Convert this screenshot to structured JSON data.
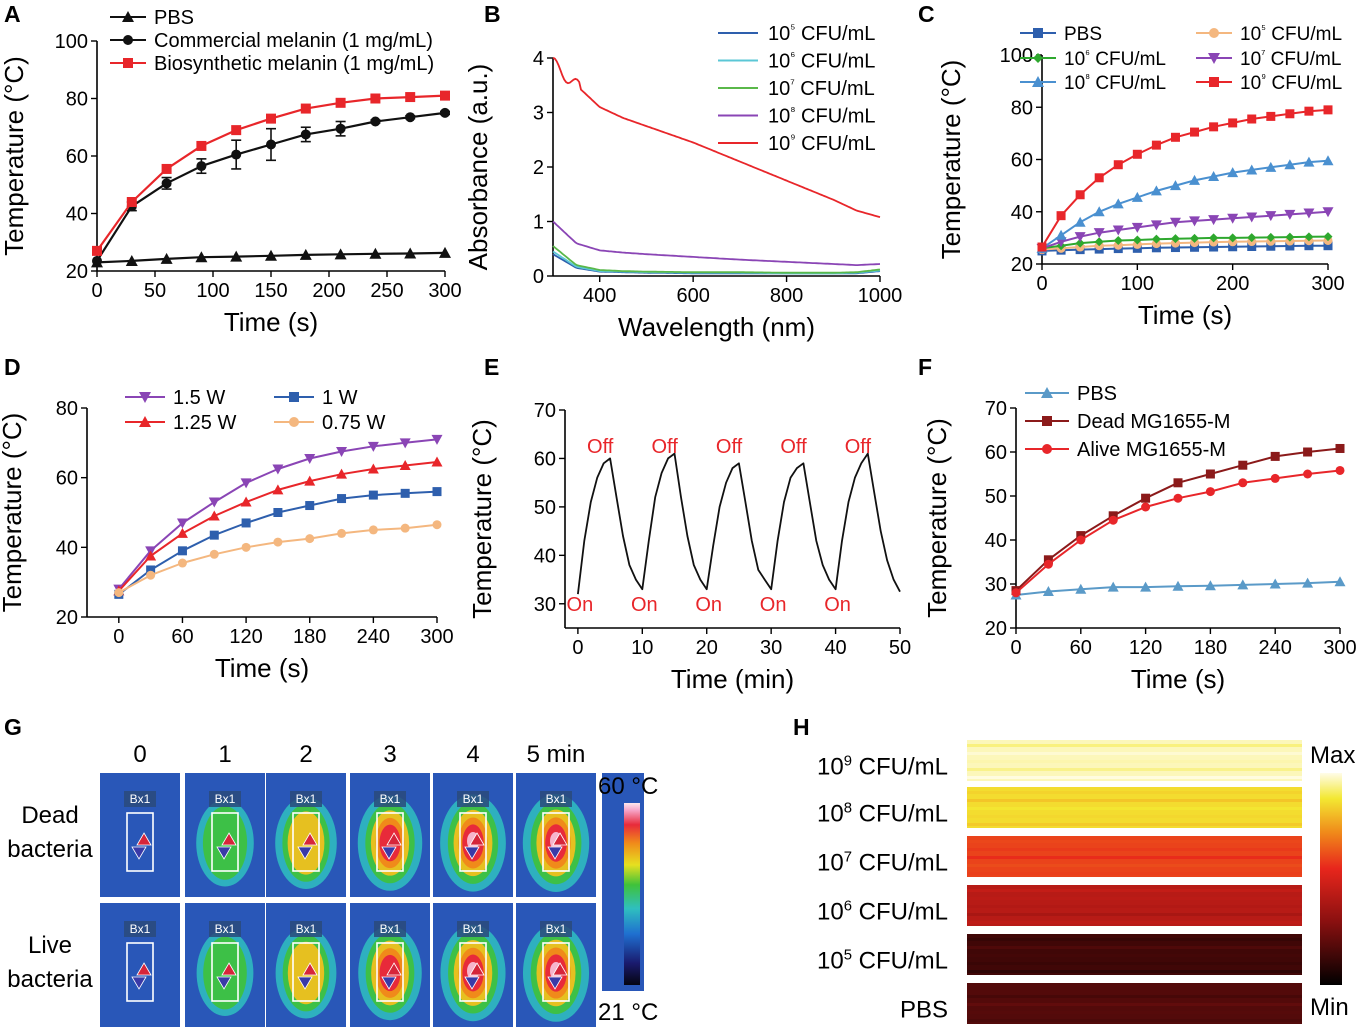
{
  "panels": {
    "A": {
      "letter": "A"
    },
    "B": {
      "letter": "B"
    },
    "C": {
      "letter": "C"
    },
    "D": {
      "letter": "D"
    },
    "E": {
      "letter": "E"
    },
    "F": {
      "letter": "F"
    },
    "G": {
      "letter": "G"
    },
    "H": {
      "letter": "H"
    }
  },
  "colors": {
    "black": "#111111",
    "red": "#e8262a",
    "darkblue": "#2e5fad",
    "cyan": "#5bc7d6",
    "green": "#5ab84a",
    "purple": "#8a45b5",
    "lightblue": "#4a90d0",
    "orange": "#f4b77f",
    "mgreen": "#2ea82e",
    "dred": "#8b1a1a",
    "sblue": "#5a9ac8",
    "offred": "#e8262a"
  },
  "chart_data": [
    {
      "id": "A",
      "type": "line",
      "xlabel": "Time (s)",
      "ylabel": "Temperature (°C)",
      "xlim": [
        0,
        300
      ],
      "ylim": [
        20,
        100
      ],
      "xticks": [
        0,
        50,
        100,
        150,
        200,
        250,
        300
      ],
      "yticks": [
        20,
        40,
        60,
        80,
        100
      ],
      "legend_position": "top-left",
      "x": [
        0,
        30,
        60,
        90,
        120,
        150,
        180,
        210,
        240,
        270,
        300
      ],
      "series": [
        {
          "name": "PBS",
          "values": [
            23,
            23.5,
            24.2,
            24.8,
            25,
            25.3,
            25.6,
            25.8,
            26,
            26.1,
            26.3
          ],
          "marker": "triangle",
          "color": "black"
        },
        {
          "name": "Commercial melanin (1 mg/mL)",
          "values": [
            23.5,
            42.5,
            50.5,
            56.5,
            60.5,
            64,
            67.5,
            69.5,
            72,
            73.5,
            75
          ],
          "errors": [
            0,
            1.5,
            2,
            2.5,
            5,
            5.5,
            2.5,
            2.5,
            0.5,
            0.5,
            0.5
          ],
          "marker": "circle",
          "color": "black"
        },
        {
          "name": "Biosynthetic melanin (1 mg/mL)",
          "values": [
            27,
            44,
            55.5,
            63.5,
            69,
            73,
            76.5,
            78.5,
            80,
            80.5,
            81
          ],
          "marker": "square",
          "color": "red"
        }
      ]
    },
    {
      "id": "B",
      "type": "line",
      "xlabel": "Wavelength (nm)",
      "ylabel": "Absorbance (a.u.)",
      "xlim": [
        300,
        1000
      ],
      "ylim": [
        0,
        4
      ],
      "xticks": [
        400,
        600,
        800,
        1000
      ],
      "yticks": [
        0,
        1,
        2,
        3,
        4
      ],
      "legend_position": "top-right",
      "x": [
        300,
        350,
        400,
        450,
        500,
        600,
        700,
        800,
        900,
        950,
        1000
      ],
      "series": [
        {
          "name": "10⁵ CFU/mL",
          "sup": "5",
          "values": [
            0.4,
            0.15,
            0.08,
            0.07,
            0.06,
            0.05,
            0.05,
            0.05,
            0.05,
            0.05,
            0.09
          ],
          "color": "darkblue"
        },
        {
          "name": "10⁶ CFU/mL",
          "sup": "6",
          "values": [
            0.45,
            0.17,
            0.09,
            0.08,
            0.07,
            0.06,
            0.06,
            0.05,
            0.05,
            0.06,
            0.1
          ],
          "color": "cyan"
        },
        {
          "name": "10⁷ CFU/mL",
          "sup": "7",
          "values": [
            0.55,
            0.2,
            0.11,
            0.09,
            0.08,
            0.07,
            0.07,
            0.06,
            0.06,
            0.07,
            0.12
          ],
          "color": "green"
        },
        {
          "name": "10⁸ CFU/mL",
          "sup": "8",
          "values": [
            1.0,
            0.6,
            0.47,
            0.43,
            0.4,
            0.35,
            0.3,
            0.26,
            0.22,
            0.2,
            0.22
          ],
          "color": "purple"
        },
        {
          "name": "10⁹ CFU/mL",
          "sup": "9",
          "values": [
            3.9,
            3.5,
            3.1,
            2.9,
            2.75,
            2.45,
            2.1,
            1.75,
            1.4,
            1.2,
            1.08
          ],
          "color": "red"
        }
      ]
    },
    {
      "id": "C",
      "type": "line",
      "xlabel": "Time (s)",
      "ylabel": "Temperature (°C)",
      "xlim": [
        0,
        300
      ],
      "ylim": [
        20,
        100
      ],
      "xticks": [
        0,
        100,
        200,
        300
      ],
      "yticks": [
        20,
        40,
        60,
        80,
        100
      ],
      "legend_position": "top",
      "x": [
        0,
        20,
        40,
        60,
        80,
        100,
        120,
        140,
        160,
        180,
        200,
        220,
        240,
        260,
        280,
        300
      ],
      "series": [
        {
          "name": "PBS",
          "values": [
            25,
            25.3,
            25.5,
            25.7,
            25.9,
            26,
            26.2,
            26.3,
            26.4,
            26.5,
            26.6,
            26.7,
            26.8,
            26.9,
            27,
            27
          ],
          "marker": "square",
          "color": "darkblue"
        },
        {
          "name": "10⁵ CFU/mL",
          "sup": "5",
          "values": [
            25.5,
            26,
            26.5,
            27,
            27.2,
            27.5,
            27.8,
            28,
            28.2,
            28.4,
            28.5,
            28.6,
            28.7,
            28.8,
            28.9,
            29
          ],
          "marker": "circle",
          "color": "orange"
        },
        {
          "name": "10⁶ CFU/mL",
          "sup": "6",
          "values": [
            26,
            27,
            28,
            28.5,
            29,
            29.2,
            29.5,
            29.7,
            29.8,
            30,
            30,
            30.1,
            30.2,
            30.3,
            30.4,
            30.5
          ],
          "marker": "diamond",
          "color": "mgreen"
        },
        {
          "name": "10⁷ CFU/mL",
          "sup": "7",
          "values": [
            26,
            28.5,
            30.5,
            32,
            33,
            34,
            35,
            36,
            36.5,
            37,
            37.5,
            38,
            38.5,
            39,
            39.5,
            40
          ],
          "marker": "tridown",
          "color": "purple"
        },
        {
          "name": "10⁸ CFU/mL",
          "sup": "8",
          "values": [
            26,
            31,
            36,
            40,
            43,
            45.5,
            48,
            50,
            52,
            53.5,
            55,
            56,
            57,
            58,
            59,
            59.5
          ],
          "marker": "triangle",
          "color": "lightblue"
        },
        {
          "name": "10⁹ CFU/mL",
          "sup": "9",
          "values": [
            26.5,
            38.5,
            46.5,
            53,
            58,
            62,
            65.5,
            68.5,
            70.5,
            72.5,
            74,
            75.5,
            76.5,
            77.5,
            78.5,
            79
          ],
          "marker": "square",
          "color": "red"
        }
      ]
    },
    {
      "id": "D",
      "type": "line",
      "xlabel": "Time (s)",
      "ylabel": "Temperature (°C)",
      "xlim": [
        -30,
        300
      ],
      "ylim": [
        20,
        80
      ],
      "xticks": [
        0,
        60,
        120,
        180,
        240,
        300
      ],
      "yticks": [
        20,
        40,
        60,
        80
      ],
      "legend_position": "top",
      "x": [
        0,
        30,
        60,
        90,
        120,
        150,
        180,
        210,
        240,
        270,
        300
      ],
      "series": [
        {
          "name": "1.5 W",
          "values": [
            28,
            39,
            47,
            53,
            58.5,
            62.5,
            65.5,
            67.5,
            69,
            70,
            71
          ],
          "marker": "tridown",
          "color": "purple"
        },
        {
          "name": "1.25 W",
          "values": [
            27.5,
            37.5,
            44,
            49,
            53,
            56.5,
            59,
            61,
            62.5,
            63.5,
            64.5
          ],
          "marker": "triangle",
          "color": "red"
        },
        {
          "name": "1 W",
          "values": [
            26.5,
            33.5,
            39,
            43.5,
            47,
            50,
            52,
            54,
            55,
            55.5,
            56
          ],
          "marker": "square",
          "color": "darkblue"
        },
        {
          "name": "0.75 W",
          "values": [
            27,
            32,
            35.5,
            38,
            40,
            41.5,
            42.5,
            44,
            45,
            45.5,
            46.5
          ],
          "marker": "circle",
          "color": "orange"
        }
      ]
    },
    {
      "id": "E",
      "type": "line",
      "xlabel": "Time (min)",
      "ylabel": "Temperature (°C)",
      "xlim": [
        -2,
        50
      ],
      "ylim": [
        25,
        70
      ],
      "xticks": [
        0,
        10,
        20,
        30,
        40,
        50
      ],
      "yticks": [
        30,
        40,
        50,
        60,
        70
      ],
      "x": [
        0,
        1,
        2,
        3,
        4,
        5,
        6,
        7,
        8,
        9,
        10,
        11,
        12,
        13,
        14,
        15,
        16,
        17,
        18,
        19,
        20,
        21,
        22,
        23,
        24,
        25,
        26,
        27,
        28,
        29,
        30,
        31,
        32,
        33,
        34,
        35,
        36,
        37,
        38,
        39,
        40,
        41,
        42,
        43,
        44,
        45,
        46,
        47,
        48,
        49,
        50
      ],
      "series": [
        {
          "name": "",
          "values": [
            32,
            43,
            51,
            56,
            59,
            60,
            52,
            44,
            38,
            35,
            33,
            43,
            52,
            57,
            60,
            61,
            52,
            44,
            38,
            35,
            33,
            42,
            50,
            55,
            58,
            59,
            51,
            43,
            37,
            35,
            33,
            43,
            51,
            56,
            58,
            59,
            51,
            43,
            38,
            35,
            33,
            43,
            51,
            56,
            59,
            61,
            53,
            45,
            39,
            35,
            32.5
          ],
          "color": "black"
        }
      ],
      "annotations": {
        "off": [
          {
            "x": 3,
            "text": "Off"
          },
          {
            "x": 13,
            "text": "Off"
          },
          {
            "x": 23,
            "text": "Off"
          },
          {
            "x": 33,
            "text": "Off"
          },
          {
            "x": 43,
            "text": "Off"
          }
        ],
        "on": [
          {
            "x": 0,
            "text": "On"
          },
          {
            "x": 10,
            "text": "On"
          },
          {
            "x": 20,
            "text": "On"
          },
          {
            "x": 30,
            "text": "On"
          },
          {
            "x": 40,
            "text": "On"
          }
        ]
      }
    },
    {
      "id": "F",
      "type": "line",
      "xlabel": "Time (s)",
      "ylabel": "Temperature (°C)",
      "xlim": [
        0,
        300
      ],
      "ylim": [
        20,
        70
      ],
      "xticks": [
        0,
        60,
        120,
        180,
        240,
        300
      ],
      "yticks": [
        20,
        30,
        40,
        50,
        60,
        70
      ],
      "legend_position": "top-left",
      "x": [
        0,
        30,
        60,
        90,
        120,
        150,
        180,
        210,
        240,
        270,
        300
      ],
      "series": [
        {
          "name": "PBS",
          "values": [
            27.5,
            28.3,
            28.8,
            29.3,
            29.3,
            29.5,
            29.6,
            29.8,
            30,
            30.2,
            30.5
          ],
          "marker": "triangle",
          "color": "sblue"
        },
        {
          "name": "Dead MG1655-M",
          "values": [
            28.5,
            35.5,
            41,
            45.5,
            49.5,
            53,
            55,
            57,
            59,
            60,
            60.8
          ],
          "marker": "square",
          "color": "dred"
        },
        {
          "name": "Alive MG1655-M",
          "values": [
            28,
            34.5,
            40,
            44.5,
            47.5,
            49.5,
            51,
            53,
            54,
            55,
            55.8
          ],
          "marker": "circle",
          "color": "red"
        }
      ]
    },
    {
      "id": "G",
      "type": "heatmap",
      "columns": [
        "0",
        "1",
        "2",
        "3",
        "4",
        "5 min"
      ],
      "rows": [
        "Dead\nbacteria",
        "Live\nbacteria"
      ],
      "row_lines": [
        [
          "Dead",
          "bacteria"
        ],
        [
          "Live",
          "bacteria"
        ]
      ],
      "box_label": "Bx1",
      "scale_max": "60 °C",
      "scale_min": "21 °C",
      "dead_hot": [
        0.05,
        0.35,
        0.6,
        0.78,
        0.86,
        0.9
      ],
      "live_hot": [
        0.05,
        0.3,
        0.55,
        0.72,
        0.82,
        0.88
      ]
    },
    {
      "id": "H",
      "type": "heatmap",
      "rows": [
        {
          "base": "10",
          "sup": "9",
          "rest": " CFU/mL",
          "level": 0.97
        },
        {
          "base": "10",
          "sup": "8",
          "rest": " CFU/mL",
          "level": 0.86
        },
        {
          "base": "10",
          "sup": "7",
          "rest": " CFU/mL",
          "level": 0.6
        },
        {
          "base": "10",
          "sup": "6",
          "rest": " CFU/mL",
          "level": 0.42
        },
        {
          "base": "10",
          "sup": "5",
          "rest": " CFU/mL",
          "level": 0.14
        },
        {
          "base": "PBS",
          "sup": "",
          "rest": "",
          "level": 0.18
        }
      ],
      "scale_max": "Max",
      "scale_min": "Min"
    }
  ]
}
